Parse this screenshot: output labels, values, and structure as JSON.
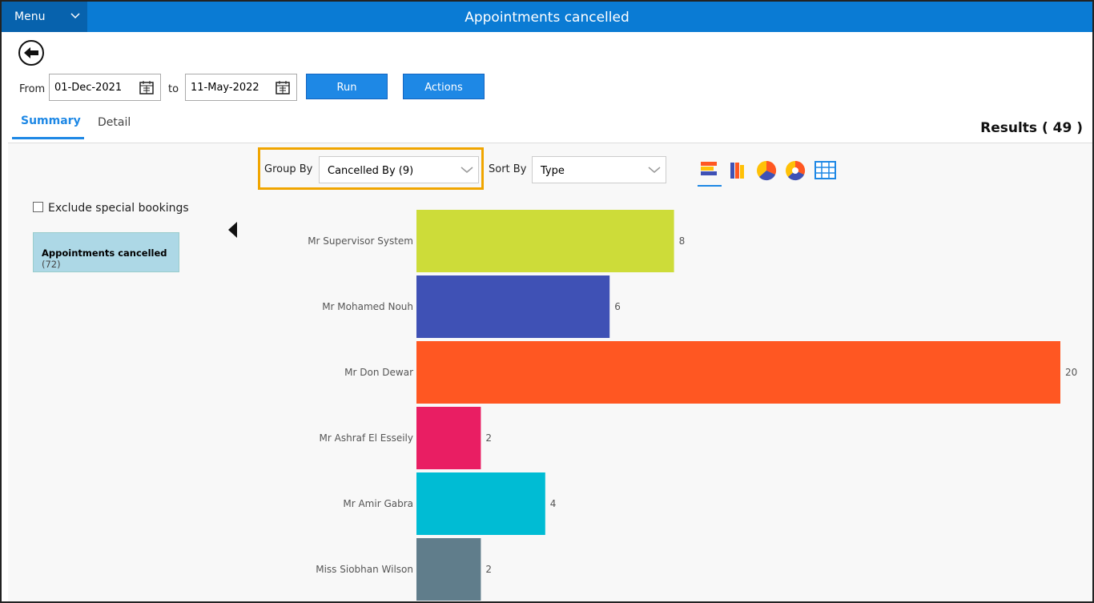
{
  "header": {
    "menu": "Menu",
    "title": "Appointments cancelled"
  },
  "filters": {
    "from_label": "From",
    "from_date": "01-Dec-2021",
    "to_label": "to",
    "to_date": "11-May-2022",
    "run": "Run",
    "actions": "Actions"
  },
  "tabs": [
    "Summary",
    "Detail"
  ],
  "results": "Results ( 49 )",
  "controls": {
    "group_by_label": "Group By",
    "group_by_value": "Cancelled By (9)",
    "sort_by_label": "Sort By",
    "sort_by_value": "Type"
  },
  "sidebar": {
    "checkbox": "Exclude special bookings",
    "item_label": "Appointments cancelled",
    "item_count": "(72)"
  },
  "chart_data": {
    "type": "bar",
    "orientation": "horizontal",
    "categories": [
      "Mr Supervisor System",
      "Mr Mohamed Nouh",
      "Mr Don Dewar",
      "Mr Ashraf El Esseily",
      "Mr Amir Gabra",
      "Miss Siobhan Wilson"
    ],
    "values": [
      8,
      6,
      20,
      2,
      4,
      2
    ],
    "colors": [
      "#cddc39",
      "#3f51b5",
      "#ff5722",
      "#e91e63",
      "#00bcd4",
      "#607d8b"
    ]
  }
}
